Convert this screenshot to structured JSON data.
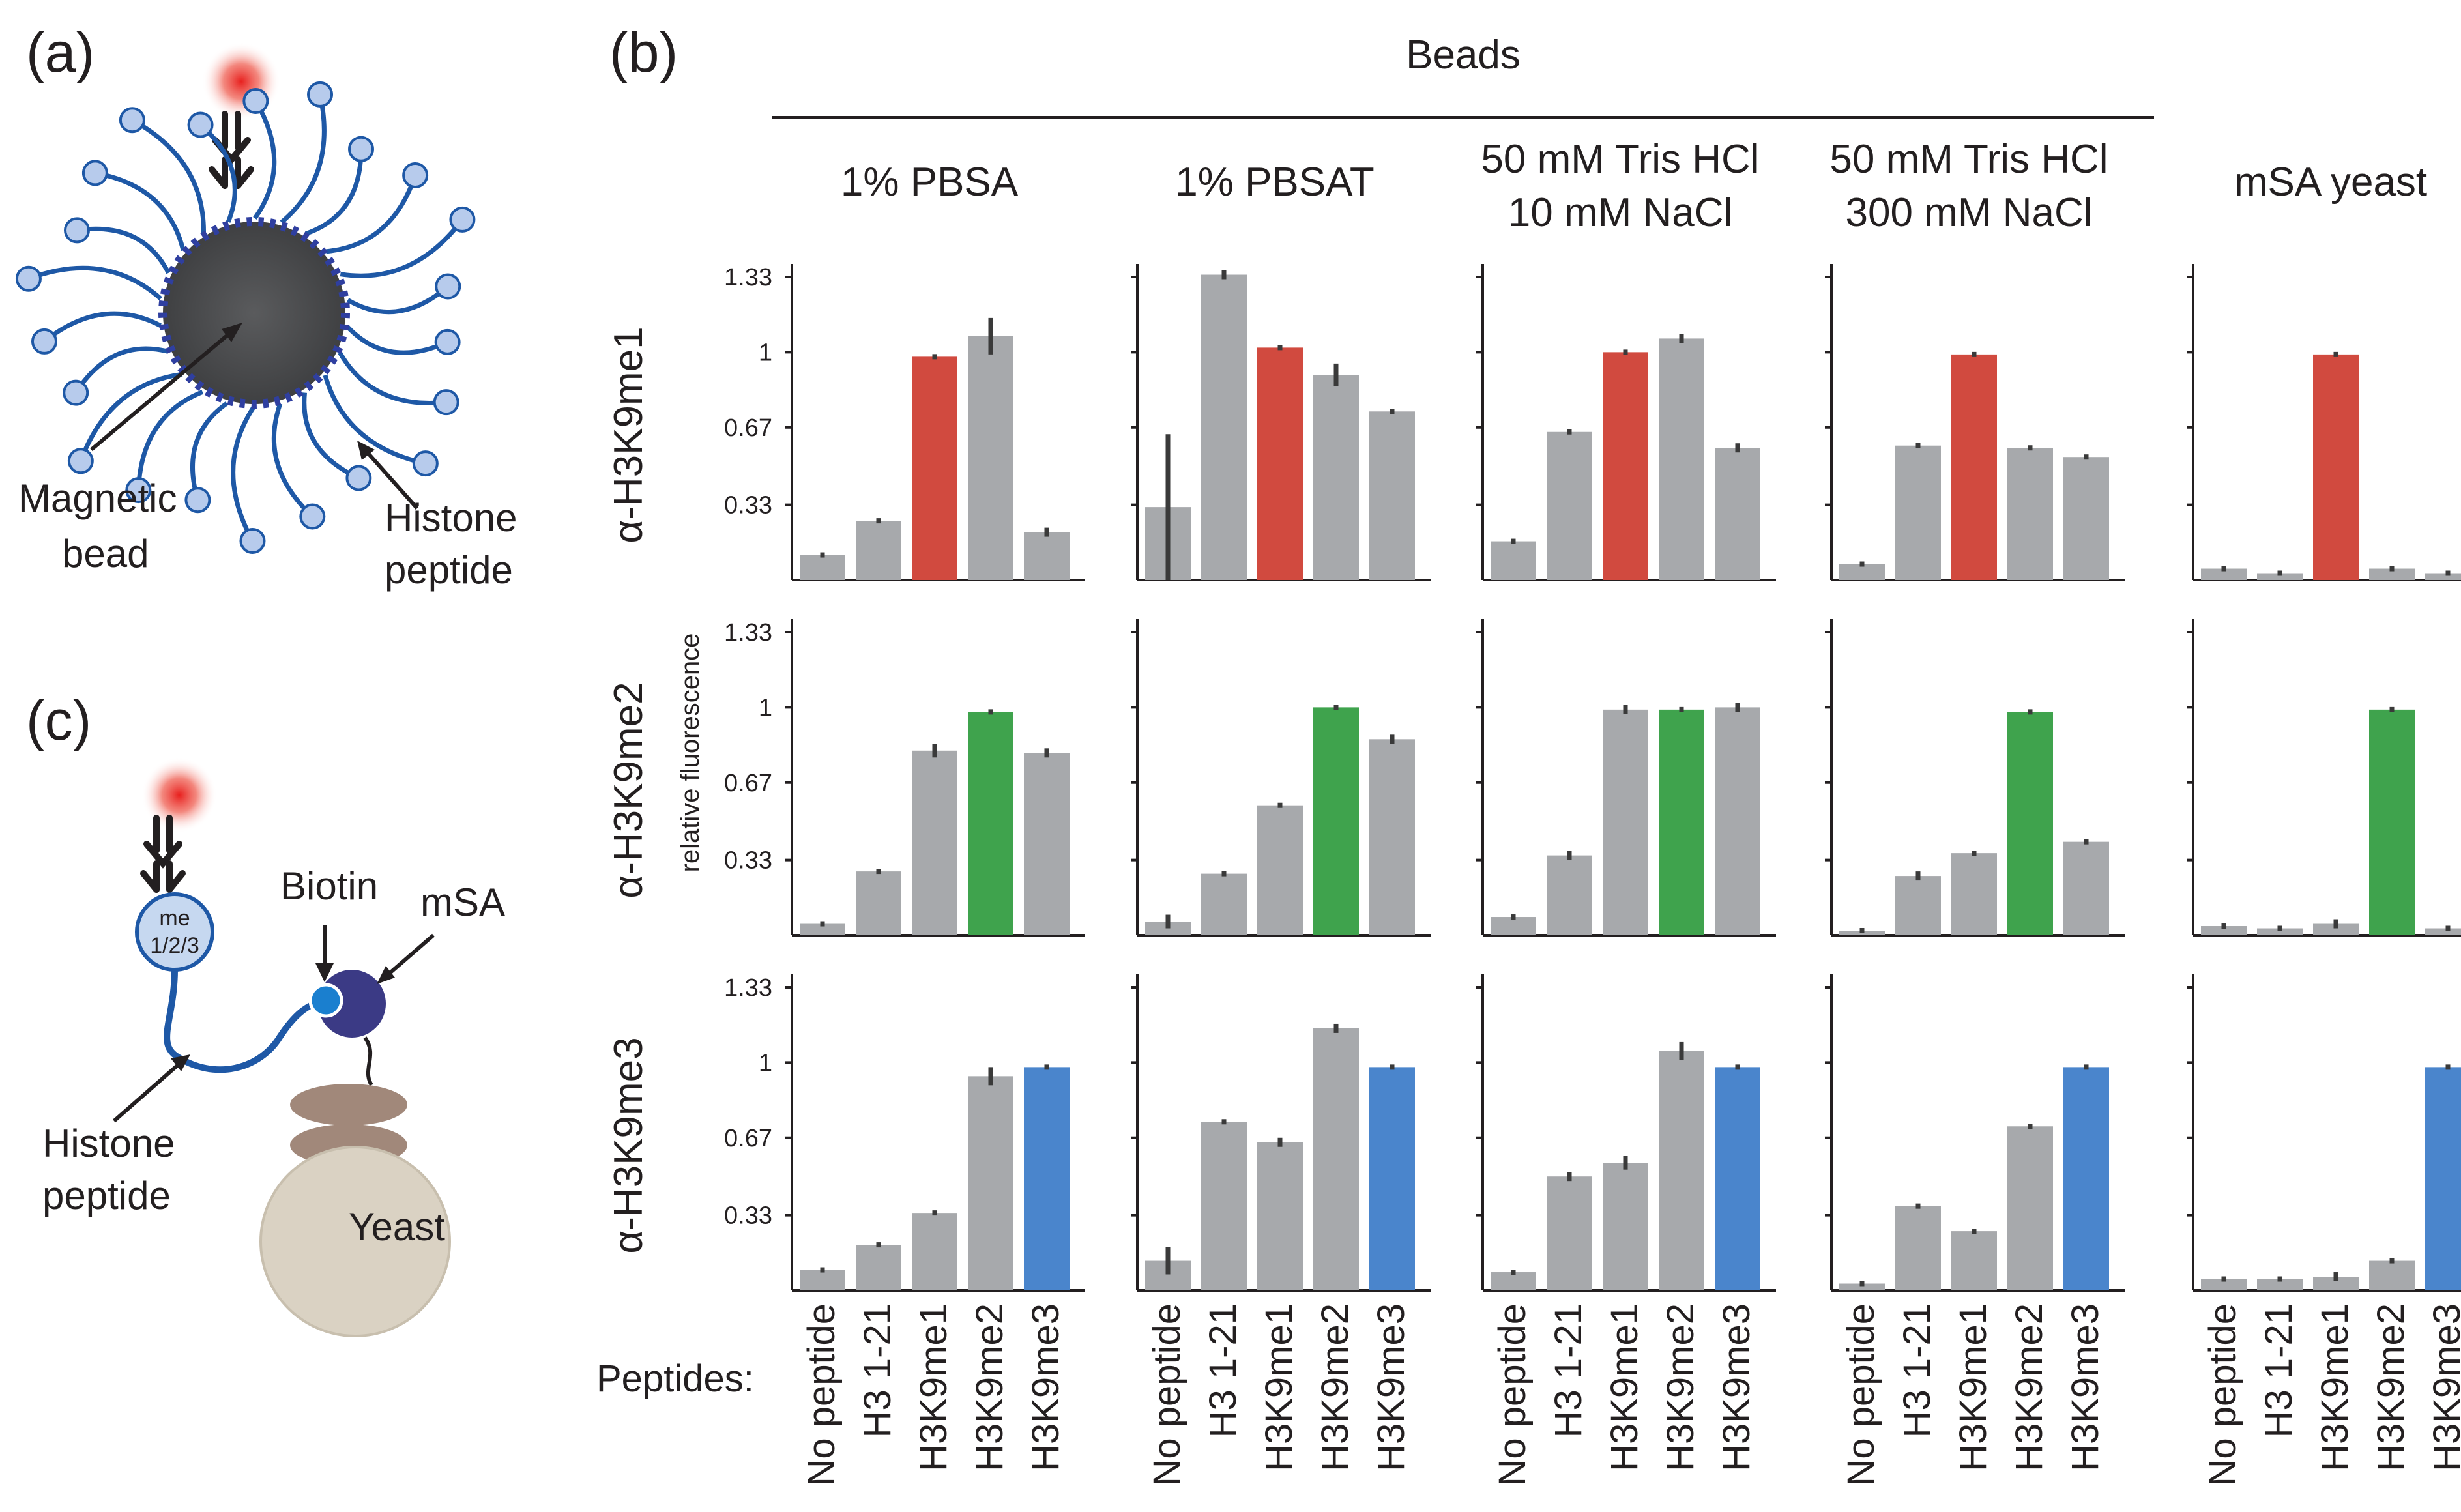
{
  "panel_labels": {
    "a": "(a)",
    "b": "(b)",
    "c": "(c)"
  },
  "schematic_a": {
    "labels": {
      "magnetic_bead": [
        "Magnetic",
        "bead"
      ],
      "histone_peptide": [
        "Histone",
        "peptide"
      ]
    }
  },
  "schematic_c": {
    "labels": {
      "biotin": "Biotin",
      "msa": "mSA",
      "yeast": "Yeast",
      "me": "me",
      "me_states": "1/2/3",
      "histone_peptide": [
        "Histone",
        "peptide"
      ]
    }
  },
  "colors": {
    "gray": "#a7a9ac",
    "me1": "#d14a3f",
    "me2": "#3fa34d",
    "me3": "#4a85cc",
    "axis": "#231f20"
  },
  "chart_data": {
    "type": "bar",
    "group_title": "Beads",
    "ylabel": "relative fluorescence",
    "ylim": [
      0,
      1.33
    ],
    "yticks": [
      "1.33",
      "1",
      "0.67",
      "0.33"
    ],
    "ytick_values": [
      1.33,
      1,
      0.67,
      0.33
    ],
    "x_label": "Peptides:",
    "categories": [
      "No peptide",
      "H3 1-21",
      "H3K9me1",
      "H3K9me2",
      "H3K9me3"
    ],
    "conditions": [
      {
        "title": [
          "1% PBSA"
        ]
      },
      {
        "title": [
          "1% PBSAT"
        ]
      },
      {
        "title": [
          "50 mM Tris HCl",
          "10 mM NaCl"
        ]
      },
      {
        "title": [
          "50 mM Tris HCl",
          "300 mM NaCl"
        ]
      },
      {
        "title": [
          "mSA yeast"
        ]
      }
    ],
    "rows": [
      {
        "antibody": "α-H3K9me1",
        "target_index": 2,
        "target_color": "#d14a3f",
        "values": [
          [
            0.11,
            0.26,
            0.98,
            1.07,
            0.21
          ],
          [
            0.32,
            1.34,
            1.02,
            0.9,
            0.74
          ],
          [
            0.17,
            0.65,
            1.0,
            1.06,
            0.58
          ],
          [
            0.07,
            0.59,
            0.99,
            0.58,
            0.54
          ],
          [
            0.05,
            0.03,
            0.99,
            0.05,
            0.03
          ]
        ],
        "errors": [
          [
            0.01,
            0.01,
            0.01,
            0.08,
            0.02
          ],
          [
            0.32,
            0.02,
            0.01,
            0.05,
            0.01
          ],
          [
            0.01,
            0.01,
            0.01,
            0.02,
            0.02
          ],
          [
            0.01,
            0.01,
            0.01,
            0.01,
            0.01
          ],
          [
            0.01,
            0.01,
            0.01,
            0.01,
            0.01
          ]
        ]
      },
      {
        "antibody": "α-H3K9me2",
        "target_index": 3,
        "target_color": "#3fa34d",
        "values": [
          [
            0.05,
            0.28,
            0.81,
            0.98,
            0.8
          ],
          [
            0.06,
            0.27,
            0.57,
            1.0,
            0.86
          ],
          [
            0.08,
            0.35,
            0.99,
            0.99,
            1.0
          ],
          [
            0.02,
            0.26,
            0.36,
            0.98,
            0.41
          ],
          [
            0.04,
            0.03,
            0.05,
            0.99,
            0.03
          ]
        ],
        "errors": [
          [
            0.01,
            0.01,
            0.03,
            0.01,
            0.02
          ],
          [
            0.03,
            0.01,
            0.01,
            0.01,
            0.02
          ],
          [
            0.01,
            0.02,
            0.02,
            0.01,
            0.02
          ],
          [
            0.01,
            0.02,
            0.01,
            0.01,
            0.01
          ],
          [
            0.01,
            0.01,
            0.02,
            0.01,
            0.01
          ]
        ]
      },
      {
        "antibody": "α-H3K9me3",
        "target_index": 4,
        "target_color": "#4a85cc",
        "values": [
          [
            0.09,
            0.2,
            0.34,
            0.94,
            0.98
          ],
          [
            0.13,
            0.74,
            0.65,
            1.15,
            0.98
          ],
          [
            0.08,
            0.5,
            0.56,
            1.05,
            0.98
          ],
          [
            0.03,
            0.37,
            0.26,
            0.72,
            0.98
          ],
          [
            0.05,
            0.05,
            0.06,
            0.13,
            0.98
          ]
        ],
        "errors": [
          [
            0.01,
            0.01,
            0.01,
            0.04,
            0.01
          ],
          [
            0.06,
            0.01,
            0.02,
            0.02,
            0.01
          ],
          [
            0.01,
            0.02,
            0.03,
            0.04,
            0.01
          ],
          [
            0.01,
            0.01,
            0.01,
            0.01,
            0.01
          ],
          [
            0.01,
            0.01,
            0.02,
            0.01,
            0.01
          ]
        ]
      }
    ]
  }
}
